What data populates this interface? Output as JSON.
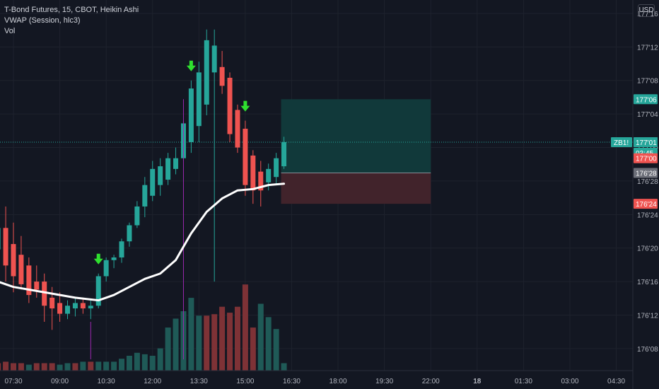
{
  "legend": {
    "main": "T-Bond Futures, 15, CBOT, Heikin Ashi",
    "vwap": "VWAP (Session, hlc3)",
    "vol": "Vol"
  },
  "currency": "USD",
  "colors": {
    "background": "#131722",
    "up": "#26a69a",
    "down": "#ef5350",
    "vol_up": "#1f5a57",
    "vol_down": "#7e3236",
    "vwap": "#ffffff",
    "arrow": "#2fe02f",
    "profit_zone": "#11393a",
    "loss_zone": "#41232b",
    "grid": "#1e222d"
  },
  "chart_data": {
    "type": "candlestick",
    "title": "T-Bond Futures, 15, CBOT, Heikin Ashi",
    "interval": "15",
    "unit_note": "price in points; 32nds shown as 176'xx",
    "y_ticks": [
      "176'08",
      "176'12",
      "176'16",
      "176'20",
      "176'24",
      "176'28",
      "177'00",
      "177'04",
      "177'08",
      "177'12",
      "177'16"
    ],
    "y_tick_values": [
      176.25,
      176.375,
      176.5,
      176.625,
      176.75,
      176.875,
      177.0,
      177.125,
      177.25,
      177.375,
      177.5
    ],
    "ylim": [
      176.168,
      177.55
    ],
    "x_ticks": [
      "07:30",
      "09:00",
      "10:30",
      "12:00",
      "13:30",
      "15:00",
      "16:30",
      "18:00",
      "19:30",
      "22:00",
      "18",
      "01:30",
      "03:00",
      "04:30"
    ],
    "x_tick_index": [
      0,
      6,
      12,
      18,
      24,
      30,
      36,
      42,
      48,
      54,
      60,
      66,
      72,
      78
    ],
    "candles": [
      {
        "i": -2,
        "o": 176.62,
        "h": 176.78,
        "l": 176.5,
        "c": 176.7
      },
      {
        "i": -1,
        "o": 176.7,
        "h": 176.78,
        "l": 176.5,
        "c": 176.56
      },
      {
        "i": 0,
        "o": 176.64,
        "h": 176.72,
        "l": 176.46,
        "c": 176.52
      },
      {
        "i": 1,
        "o": 176.6,
        "h": 176.67,
        "l": 176.47,
        "c": 176.49
      },
      {
        "i": 2,
        "o": 176.56,
        "h": 176.59,
        "l": 176.42,
        "c": 176.45
      },
      {
        "i": 3,
        "o": 176.5,
        "h": 176.56,
        "l": 176.44,
        "c": 176.47
      },
      {
        "i": 4,
        "o": 176.5,
        "h": 176.53,
        "l": 176.35,
        "c": 176.41
      },
      {
        "i": 5,
        "o": 176.44,
        "h": 176.48,
        "l": 176.32,
        "c": 176.4
      },
      {
        "i": 6,
        "o": 176.42,
        "h": 176.46,
        "l": 176.35,
        "c": 176.38
      },
      {
        "i": 7,
        "o": 176.38,
        "h": 176.43,
        "l": 176.36,
        "c": 176.41
      },
      {
        "i": 8,
        "o": 176.4,
        "h": 176.44,
        "l": 176.37,
        "c": 176.42
      },
      {
        "i": 9,
        "o": 176.42,
        "h": 176.44,
        "l": 176.38,
        "c": 176.4
      },
      {
        "i": 10,
        "o": 176.4,
        "h": 176.43,
        "l": 176.36,
        "c": 176.41
      },
      {
        "i": 11,
        "o": 176.41,
        "h": 176.53,
        "l": 176.4,
        "c": 176.52
      },
      {
        "i": 12,
        "o": 176.52,
        "h": 176.59,
        "l": 176.5,
        "c": 176.58
      },
      {
        "i": 13,
        "o": 176.58,
        "h": 176.6,
        "l": 176.55,
        "c": 176.59
      },
      {
        "i": 14,
        "o": 176.59,
        "h": 176.66,
        "l": 176.57,
        "c": 176.65
      },
      {
        "i": 15,
        "o": 176.65,
        "h": 176.72,
        "l": 176.63,
        "c": 176.71
      },
      {
        "i": 16,
        "o": 176.71,
        "h": 176.8,
        "l": 176.7,
        "c": 176.78
      },
      {
        "i": 17,
        "o": 176.78,
        "h": 176.89,
        "l": 176.74,
        "c": 176.86
      },
      {
        "i": 18,
        "o": 176.82,
        "h": 176.95,
        "l": 176.8,
        "c": 176.92
      },
      {
        "i": 19,
        "o": 176.86,
        "h": 176.96,
        "l": 176.82,
        "c": 176.93
      },
      {
        "i": 20,
        "o": 176.88,
        "h": 176.98,
        "l": 176.86,
        "c": 176.96
      },
      {
        "i": 21,
        "o": 176.92,
        "h": 177.0,
        "l": 176.9,
        "c": 176.96
      },
      {
        "i": 22,
        "o": 176.96,
        "h": 177.1,
        "l": 176.95,
        "c": 177.09
      },
      {
        "i": 23,
        "o": 177.02,
        "h": 177.25,
        "l": 176.98,
        "c": 177.22
      },
      {
        "i": 24,
        "o": 177.08,
        "h": 177.32,
        "l": 177.02,
        "c": 177.28
      },
      {
        "i": 25,
        "o": 177.16,
        "h": 177.44,
        "l": 177.12,
        "c": 177.4
      },
      {
        "i": 26,
        "o": 177.28,
        "h": 177.44,
        "l": 176.5,
        "c": 177.38
      },
      {
        "i": 27,
        "o": 177.3,
        "h": 177.36,
        "l": 177.2,
        "c": 177.23
      },
      {
        "i": 28,
        "o": 177.26,
        "h": 177.28,
        "l": 177.02,
        "c": 177.05
      },
      {
        "i": 29,
        "o": 177.14,
        "h": 177.16,
        "l": 176.98,
        "c": 177.0
      },
      {
        "i": 30,
        "o": 177.07,
        "h": 177.1,
        "l": 176.82,
        "c": 176.86
      },
      {
        "i": 31,
        "o": 176.97,
        "h": 176.99,
        "l": 176.79,
        "c": 176.84
      },
      {
        "i": 32,
        "o": 176.91,
        "h": 176.95,
        "l": 176.78,
        "c": 176.84
      },
      {
        "i": 33,
        "o": 176.87,
        "h": 176.94,
        "l": 176.84,
        "c": 176.92
      },
      {
        "i": 34,
        "o": 176.89,
        "h": 176.98,
        "l": 176.86,
        "c": 176.96
      },
      {
        "i": 35,
        "o": 176.93,
        "h": 177.04,
        "l": 176.92,
        "c": 177.02
      }
    ],
    "volume": [
      {
        "i": -2,
        "v": 0.5,
        "up": false
      },
      {
        "i": -1,
        "v": 0.6,
        "up": false
      },
      {
        "i": 0,
        "v": 0.5,
        "up": false
      },
      {
        "i": 1,
        "v": 0.5,
        "up": false
      },
      {
        "i": 2,
        "v": 0.4,
        "up": true
      },
      {
        "i": 3,
        "v": 0.5,
        "up": false
      },
      {
        "i": 4,
        "v": 0.5,
        "up": false
      },
      {
        "i": 5,
        "v": 0.5,
        "up": false
      },
      {
        "i": 6,
        "v": 0.4,
        "up": true
      },
      {
        "i": 7,
        "v": 0.5,
        "up": true
      },
      {
        "i": 8,
        "v": 0.5,
        "up": false
      },
      {
        "i": 9,
        "v": 0.6,
        "up": true
      },
      {
        "i": 10,
        "v": 0.6,
        "up": false
      },
      {
        "i": 11,
        "v": 0.6,
        "up": true
      },
      {
        "i": 12,
        "v": 0.6,
        "up": true
      },
      {
        "i": 13,
        "v": 0.6,
        "up": true
      },
      {
        "i": 14,
        "v": 0.8,
        "up": true
      },
      {
        "i": 15,
        "v": 1.0,
        "up": true
      },
      {
        "i": 16,
        "v": 1.2,
        "up": true
      },
      {
        "i": 17,
        "v": 1.1,
        "up": true
      },
      {
        "i": 18,
        "v": 1.0,
        "up": true
      },
      {
        "i": 19,
        "v": 1.5,
        "up": true
      },
      {
        "i": 20,
        "v": 2.9,
        "up": true
      },
      {
        "i": 21,
        "v": 3.5,
        "up": true
      },
      {
        "i": 22,
        "v": 4.0,
        "up": true
      },
      {
        "i": 23,
        "v": 4.9,
        "up": true
      },
      {
        "i": 24,
        "v": 3.7,
        "up": true
      },
      {
        "i": 25,
        "v": 3.7,
        "up": false
      },
      {
        "i": 26,
        "v": 3.8,
        "up": false
      },
      {
        "i": 27,
        "v": 4.3,
        "up": false
      },
      {
        "i": 28,
        "v": 3.9,
        "up": false
      },
      {
        "i": 29,
        "v": 4.3,
        "up": false
      },
      {
        "i": 30,
        "v": 5.8,
        "up": false
      },
      {
        "i": 31,
        "v": 2.9,
        "up": false
      },
      {
        "i": 32,
        "v": 4.5,
        "up": true
      },
      {
        "i": 33,
        "v": 3.6,
        "up": true
      },
      {
        "i": 34,
        "v": 2.8,
        "up": true
      },
      {
        "i": 35,
        "v": 0.5,
        "up": true
      }
    ],
    "vwap": [
      {
        "i": -2,
        "v": 176.5
      },
      {
        "i": 0,
        "v": 176.48
      },
      {
        "i": 4,
        "v": 176.46
      },
      {
        "i": 8,
        "v": 176.44
      },
      {
        "i": 11,
        "v": 176.43
      },
      {
        "i": 13,
        "v": 176.45
      },
      {
        "i": 15,
        "v": 176.48
      },
      {
        "i": 17,
        "v": 176.51
      },
      {
        "i": 19,
        "v": 176.53
      },
      {
        "i": 21,
        "v": 176.58
      },
      {
        "i": 23,
        "v": 176.68
      },
      {
        "i": 25,
        "v": 176.76
      },
      {
        "i": 27,
        "v": 176.81
      },
      {
        "i": 29,
        "v": 176.84
      },
      {
        "i": 31,
        "v": 176.845
      },
      {
        "i": 33,
        "v": 176.86
      },
      {
        "i": 35,
        "v": 176.865
      }
    ],
    "signal_arrows_index": [
      11,
      23,
      30
    ],
    "position_tool": {
      "start_index": 35,
      "end_index": 54,
      "entry": 176.905,
      "target": 177.18,
      "stop": 176.79
    },
    "price_tags": [
      {
        "label": "177'06",
        "value": 177.18,
        "color": "#26a69a"
      },
      {
        "label": "ZB1!",
        "value": 177.02,
        "color": "#26a69a",
        "with_symbol": true
      },
      {
        "label": "177'01",
        "value": 177.02,
        "color": "#26a69a"
      },
      {
        "label": "03:45",
        "value": 176.975,
        "color": "#26a69a"
      },
      {
        "label": "177'00",
        "value": 176.96,
        "color": "#ef5350"
      },
      {
        "label": "176'28",
        "value": 176.905,
        "color": "#6b6e78"
      },
      {
        "label": "176'24",
        "value": 176.79,
        "color": "#ef5350"
      }
    ]
  }
}
